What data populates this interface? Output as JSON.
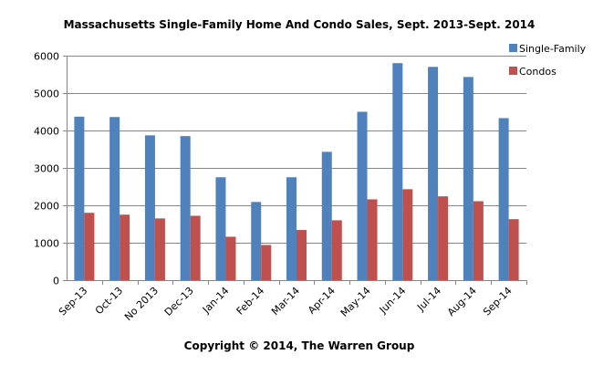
{
  "chart_data": {
    "type": "bar",
    "title": "Massachusetts Single-Family Home And Condo Sales, Sept. 2013-Sept. 2014",
    "xlabel": "",
    "ylabel": "",
    "ylim": [
      0,
      6000
    ],
    "yticks": [
      "0",
      "1000",
      "2000",
      "3000",
      "4000",
      "5000",
      "6000"
    ],
    "grid": true,
    "legend_position": "top-right",
    "categories": [
      "Sep-13",
      "Oct-13",
      "No 2013",
      "Dec-13",
      "Jan-14",
      "Feb-14",
      "Mar-14",
      "Apr-14",
      "May-14",
      "Jun-14",
      "Jul-14",
      "Aug-14",
      "Sep-14"
    ],
    "series": [
      {
        "name": "Single-Family",
        "color": "#4F81BD",
        "values": [
          4370,
          4360,
          3870,
          3850,
          2750,
          2090,
          2750,
          3430,
          4500,
          5800,
          5700,
          5430,
          4330
        ]
      },
      {
        "name": "Condos",
        "color": "#C0504D",
        "values": [
          1800,
          1750,
          1650,
          1720,
          1160,
          940,
          1340,
          1600,
          2160,
          2430,
          2240,
          2110,
          1630
        ]
      }
    ],
    "footer": "Copyright © 2014,  The Warren Group"
  }
}
